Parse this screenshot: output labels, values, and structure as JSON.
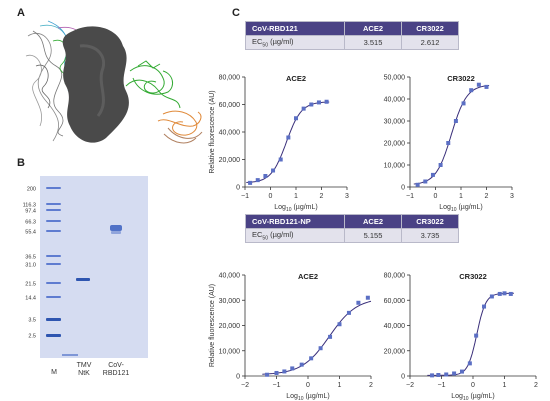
{
  "panels": {
    "a_label": "A",
    "b_label": "B",
    "c_label": "C"
  },
  "colors": {
    "curve": "#3a2f7a",
    "marker": "#5b6fc4",
    "table_header": "#4a4285",
    "table_row": "#e3e2ec",
    "gel_bg": "#d5dcf1",
    "protein_gray": "#4a4a4a",
    "ribbon_green": "#33aa33",
    "ribbon_orange": "#e08a3a"
  },
  "gel": {
    "markers": [
      "200",
      "116.3",
      "97.4",
      "66.3",
      "55.4",
      "36.5",
      "31.0",
      "21.5",
      "14.4",
      "3.5",
      "2.5"
    ],
    "lane_labels": [
      "M",
      "TMV\nNtK",
      "CoV-\nRBD121"
    ]
  },
  "table1": {
    "header": [
      "CoV-RBD121",
      "ACE2",
      "CR3022"
    ],
    "row_label": "EC50 (µg/ml)",
    "values": [
      "3.515",
      "2.612"
    ]
  },
  "table2": {
    "header": [
      "CoV-RBD121-NP",
      "ACE2",
      "CR3022"
    ],
    "row_label": "EC50 (µg/ml)",
    "values": [
      "5.155",
      "3.735"
    ]
  },
  "y_axis_label": "Relative fluorescence (AU)",
  "x_axis_label": "Log10 (µg/mL)",
  "chart_data": [
    {
      "type": "scatter",
      "title": "ACE2",
      "xlabel": "Log10 (µg/mL)",
      "ylabel": "Relative fluorescence (AU)",
      "xlim": [
        -1,
        3
      ],
      "ylim": [
        0,
        80000
      ],
      "xticks": [
        -1,
        0,
        1,
        2,
        3
      ],
      "yticks": [
        0,
        20000,
        40000,
        60000,
        80000
      ],
      "ytick_labels": [
        "0",
        "20,000",
        "40,000",
        "60,000",
        "80,000"
      ],
      "x": [
        -0.8,
        -0.5,
        -0.2,
        0.1,
        0.4,
        0.7,
        1.0,
        1.3,
        1.6,
        1.9,
        2.2
      ],
      "y": [
        3000,
        5000,
        8000,
        12000,
        20000,
        36000,
        50000,
        57000,
        60000,
        61500,
        62000
      ]
    },
    {
      "type": "scatter",
      "title": "CR3022",
      "xlabel": "Log10 (µg/mL)",
      "ylabel": "",
      "xlim": [
        -1,
        3
      ],
      "ylim": [
        0,
        50000
      ],
      "xticks": [
        -1,
        0,
        1,
        2,
        3
      ],
      "yticks": [
        0,
        10000,
        20000,
        30000,
        40000,
        50000
      ],
      "ytick_labels": [
        "0",
        "10,000",
        "20,000",
        "30,000",
        "40,000",
        "50,000"
      ],
      "x": [
        -0.7,
        -0.4,
        -0.1,
        0.2,
        0.5,
        0.8,
        1.1,
        1.4,
        1.7,
        2.0
      ],
      "y": [
        1000,
        2500,
        5500,
        10000,
        20000,
        30000,
        38000,
        44000,
        46500,
        45500
      ]
    },
    {
      "type": "scatter",
      "title": "ACE2",
      "xlabel": "Log10 (µg/mL)",
      "ylabel": "Relative fluorescence (AU)",
      "xlim": [
        -2,
        2
      ],
      "ylim": [
        0,
        40000
      ],
      "xticks": [
        -2,
        -1,
        0,
        1,
        2
      ],
      "yticks": [
        0,
        10000,
        20000,
        30000,
        40000
      ],
      "ytick_labels": [
        "0",
        "10,000",
        "20,000",
        "30,000",
        "40,000"
      ],
      "x": [
        -1.3,
        -1.0,
        -0.75,
        -0.5,
        -0.2,
        0.1,
        0.4,
        0.7,
        1.0,
        1.3,
        1.6,
        1.9
      ],
      "y": [
        500,
        1200,
        1800,
        3000,
        4500,
        7000,
        11000,
        15500,
        20500,
        25000,
        29000,
        31000
      ]
    },
    {
      "type": "scatter",
      "title": "CR3022",
      "xlabel": "Log10 (µg/mL)",
      "ylabel": "",
      "xlim": [
        -2,
        2
      ],
      "ylim": [
        0,
        80000
      ],
      "xticks": [
        -2,
        -1,
        0,
        1,
        2
      ],
      "yticks": [
        0,
        20000,
        40000,
        60000,
        80000
      ],
      "ytick_labels": [
        "0",
        "20,000",
        "40,000",
        "60,000",
        "80,000"
      ],
      "x": [
        -1.3,
        -1.1,
        -0.85,
        -0.6,
        -0.35,
        -0.1,
        0.1,
        0.35,
        0.6,
        0.85,
        1.0,
        1.2
      ],
      "y": [
        500,
        800,
        1200,
        2000,
        3500,
        10000,
        32000,
        55000,
        63000,
        65000,
        65500,
        65000
      ]
    }
  ]
}
